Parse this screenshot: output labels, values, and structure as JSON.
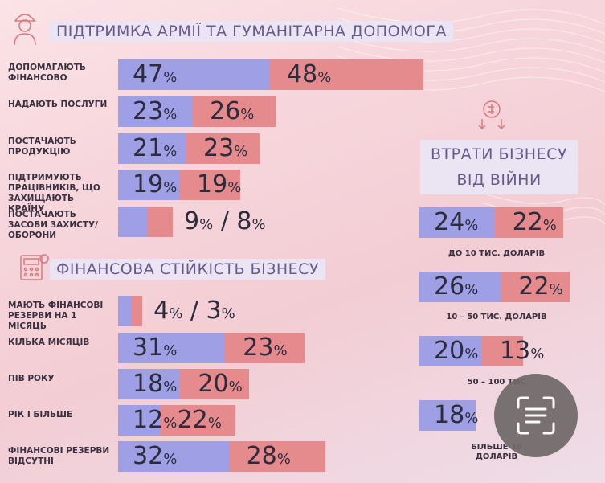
{
  "colors": {
    "blue": "#9f9fe6",
    "red": "#e58a8d",
    "title_text": "#6a5a8c"
  },
  "army": {
    "title": "ПІДТРИМКА АРМІЇ ТА ГУМАНІТАРНА ДОПОМОГА",
    "icon": "soldier-icon",
    "rows": [
      {
        "label": "ДОПОМАГАЮТЬ ФІНАНСОВО",
        "blue": 47,
        "red": 48,
        "blue_text": "47",
        "red_text": "48"
      },
      {
        "label": "НАДАЮТЬ ПОСЛУГИ",
        "blue": 23,
        "red": 26,
        "blue_text": "23",
        "red_text": "26"
      },
      {
        "label": "ПОСТАЧАЮТЬ ПРОДУКЦІЮ",
        "blue": 21,
        "red": 23,
        "blue_text": "21",
        "red_text": "23"
      },
      {
        "label": "ПІДТРИМУЮТЬ ПРАЦІВНИКІВ, ЩО ЗАХИЩАЮТЬ КРАЇНУ",
        "blue": 19,
        "red": 19,
        "blue_text": "19",
        "red_text": "19"
      },
      {
        "label": "ПОСТАЧАЮТЬ ЗАСОБИ ЗАХИСТУ/ОБОРОНИ",
        "blue": 9,
        "red": 8,
        "blue_text": "9",
        "red_text": "8"
      }
    ]
  },
  "fin": {
    "title": "ФІНАНСОВА СТІЙКІСТЬ БІЗНЕСУ",
    "icon": "calculator-icon",
    "rows": [
      {
        "label": "МАЮТЬ ФІНАНСОВІ РЕЗЕРВИ НА 1 МІСЯЦЬ",
        "blue": 4,
        "red": 3,
        "blue_text": "4",
        "red_text": "3"
      },
      {
        "label": "КІЛЬКА МІСЯЦІВ",
        "blue": 31,
        "red": 23,
        "blue_text": "31",
        "red_text": "23"
      },
      {
        "label": "ПІВ РОКУ",
        "blue": 18,
        "red": 20,
        "blue_text": "18",
        "red_text": "20"
      },
      {
        "label": "РІК І БІЛЬШЕ",
        "blue": 12,
        "red": 22,
        "blue_text": "12",
        "red_text": "22"
      },
      {
        "label": "ФІНАНСОВІ РЕЗЕРВИ ВІДСУТНІ",
        "blue": 32,
        "red": 28,
        "blue_text": "32",
        "red_text": "28"
      }
    ]
  },
  "loss": {
    "title_line1": "ВТРАТИ БІЗНЕСУ",
    "title_line2": "ВІД ВІЙНИ",
    "icon": "money-loss-icon",
    "rows": [
      {
        "label": "ДО 10 ТИС. ДОЛАРІВ",
        "blue": 24,
        "red": 22,
        "blue_text": "24",
        "red_text": "22"
      },
      {
        "label": "10 – 50 ТИС. ДОЛАРІВ",
        "blue": 26,
        "red": 22,
        "blue_text": "26",
        "red_text": "22"
      },
      {
        "label": "50 – 100 ТИС",
        "blue": 20,
        "red": 13,
        "blue_text": "20",
        "red_text": "13"
      },
      {
        "label": "БІЛЬШЕ 10",
        "label_line2": "ДОЛАРІВ",
        "blue": 18,
        "red": null,
        "blue_text": "18",
        "red_text": ""
      }
    ]
  },
  "percent_sign": "%",
  "slash": "/",
  "scan_button": {
    "icon": "text-scan-icon"
  },
  "chart_data": [
    {
      "type": "bar",
      "title": "ПІДТРИМКА АРМІЇ ТА ГУМАНІТАРНА ДОПОМОГА",
      "categories": [
        "ДОПОМАГАЮТЬ ФІНАНСОВО",
        "НАДАЮТЬ ПОСЛУГИ",
        "ПОСТАЧАЮТЬ ПРОДУКЦІЮ",
        "ПІДТРИМУЮТЬ ПРАЦІВНИКІВ, ЩО ЗАХИЩАЮТЬ КРАЇНУ",
        "ПОСТАЧАЮТЬ ЗАСОБИ ЗАХИСТУ/ОБОРОНИ"
      ],
      "series": [
        {
          "values": [
            47,
            23,
            21,
            19,
            9
          ]
        },
        {
          "values": [
            48,
            26,
            23,
            19,
            8
          ]
        }
      ],
      "xlabel": "",
      "ylabel": ""
    },
    {
      "type": "bar",
      "title": "ФІНАНСОВА СТІЙКІСТЬ БІЗНЕСУ",
      "categories": [
        "МАЮТЬ ФІНАНСОВІ РЕЗЕРВИ НА 1 МІСЯЦЬ",
        "КІЛЬКА МІСЯЦІВ",
        "ПІВ РОКУ",
        "РІК І БІЛЬШЕ",
        "ФІНАНСОВІ РЕЗЕРВИ ВІДСУТНІ"
      ],
      "series": [
        {
          "values": [
            4,
            31,
            18,
            12,
            32
          ]
        },
        {
          "values": [
            3,
            23,
            20,
            22,
            28
          ]
        }
      ],
      "xlabel": "",
      "ylabel": ""
    },
    {
      "type": "bar",
      "title": "ВТРАТИ БІЗНЕСУ ВІД ВІЙНИ",
      "categories": [
        "ДО 10 ТИС. ДОЛАРІВ",
        "10 – 50 ТИС. ДОЛАРІВ",
        "50 – 100 ТИС",
        "БІЛЬШЕ 10"
      ],
      "series": [
        {
          "values": [
            24,
            26,
            20,
            18
          ]
        },
        {
          "values": [
            22,
            22,
            13,
            null
          ]
        }
      ],
      "xlabel": "",
      "ylabel": ""
    }
  ]
}
